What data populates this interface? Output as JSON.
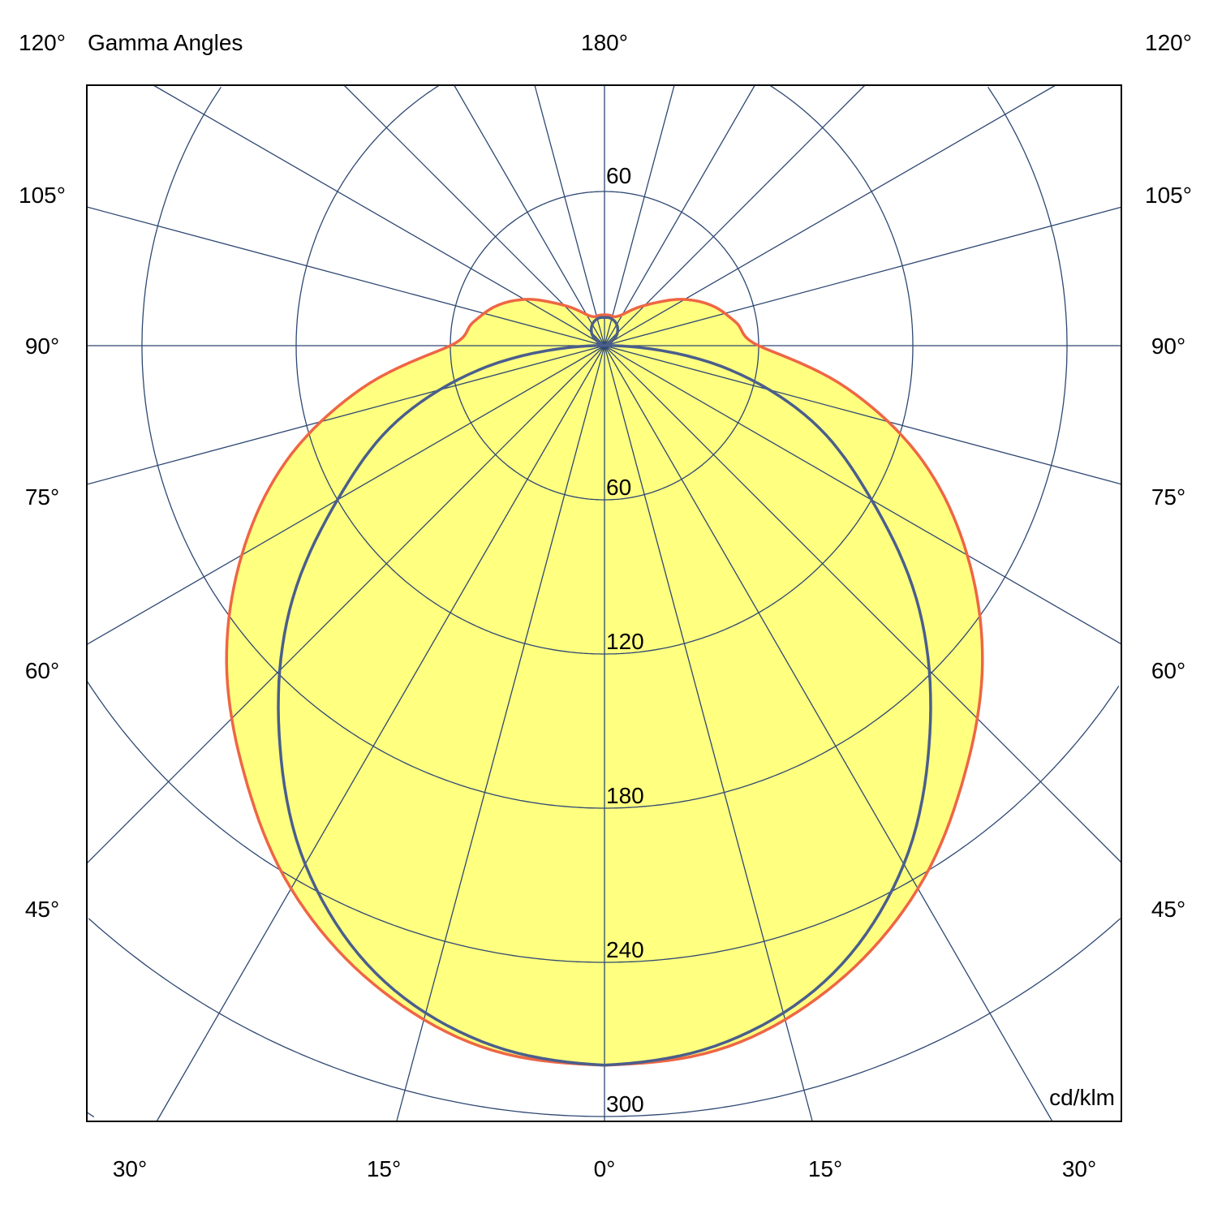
{
  "chart_data": {
    "type": "polar",
    "title": "Gamma Angles",
    "unit": "cd/klm",
    "radial_ticks": [
      60,
      120,
      180,
      240,
      300
    ],
    "radial_max": 300,
    "top_radial_label": "60",
    "angle_grid_step_deg": 15,
    "angle_labels": {
      "top_center": "180°",
      "left": [
        "120°",
        "105°",
        "90°",
        "75°",
        "60°",
        "45°"
      ],
      "right": [
        "120°",
        "105°",
        "90°",
        "75°",
        "60°",
        "45°"
      ],
      "bottom": [
        "30°",
        "15°",
        "0°",
        "15°",
        "30°"
      ]
    },
    "gamma_deg": [
      0,
      10,
      20,
      30,
      40,
      50,
      60,
      70,
      80,
      90,
      100,
      110,
      120,
      130,
      140,
      150,
      160,
      170,
      180
    ],
    "series": [
      {
        "plane": "C0-C180",
        "color": "#ee6644",
        "filled": true,
        "fill": "#ffff80",
        "values": [
          280,
          277,
          264,
          244,
          218,
          192,
          163,
          132,
          96,
          60,
          52,
          45,
          36,
          26,
          19,
          14,
          12,
          12,
          12
        ]
      },
      {
        "plane": "C90-C270",
        "color": "#4a5e8c",
        "filled": false,
        "values": [
          280,
          275,
          260,
          233,
          197,
          160,
          120,
          86,
          46,
          4,
          0,
          0,
          3,
          6,
          8,
          9.5,
          10.5,
          11,
          11
        ]
      }
    ],
    "colors": {
      "grid": "#2e4872",
      "box": "#000000"
    }
  }
}
